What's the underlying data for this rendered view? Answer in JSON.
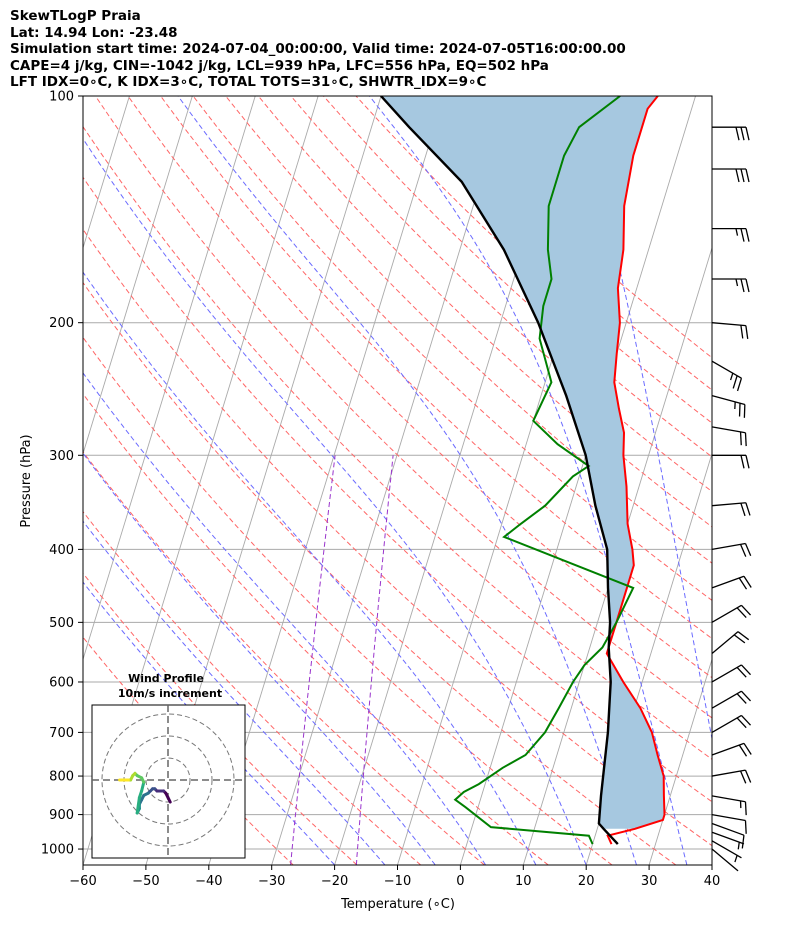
{
  "header": {
    "line1": "SkewTLogP Praia",
    "line2": "Lat: 14.94   Lon: -23.48",
    "line3": "Simulation start time: 2024-07-04_00:00:00, Valid time: 2024-07-05T16:00:00.00",
    "line4": "CAPE=4 j/kg, CIN=-1042 j/kg, LCL=939 hPa, LFC=556 hPa, EQ=502 hPa",
    "line5": "LFT IDX=0∘C, K IDX=3∘C, TOTAL TOTS=31∘C, SHWTR_IDX=9∘C"
  },
  "colors": {
    "temperature": "#ff0000",
    "dewpoint": "#008000",
    "parcel": "#000000",
    "cape_fill": "#a6c8e0",
    "dry_adiabat": "#ff6666",
    "moist_adiabat": "#6b6bff",
    "mixing_ratio": "#9933cc",
    "isotherm": "#aaaaaa"
  },
  "chart_data": [
    {
      "type": "line",
      "subtype": "skew-T log-P diagram",
      "xlabel": "Temperature (∘C)",
      "ylabel": "Pressure (hPa)",
      "xlim": [
        -60,
        40
      ],
      "ylim": [
        1050,
        100
      ],
      "yscale": "log",
      "xticks": [
        -60,
        -50,
        -40,
        -30,
        -20,
        -10,
        0,
        10,
        20,
        30,
        40
      ],
      "yticks": [
        1000,
        900,
        800,
        700,
        600,
        500,
        400,
        300,
        200,
        100
      ],
      "grid": true,
      "series": [
        {
          "key": "temperature",
          "points": [
            [
              23,
              985
            ],
            [
              22,
              960
            ],
            [
              26,
              940
            ],
            [
              30,
              915
            ],
            [
              30,
              900
            ],
            [
              29,
              850
            ],
            [
              28,
              800
            ],
            [
              26,
              750
            ],
            [
              24,
              700
            ],
            [
              21,
              650
            ],
            [
              17,
              600
            ],
            [
              13,
              550
            ],
            [
              13,
              500
            ],
            [
              13,
              450
            ],
            [
              13,
              420
            ],
            [
              12,
              400
            ],
            [
              10,
              370
            ],
            [
              8,
              330
            ],
            [
              6,
              300
            ],
            [
              5,
              280
            ],
            [
              3,
              260
            ],
            [
              1,
              240
            ],
            [
              0,
              220
            ],
            [
              -1,
              200
            ],
            [
              -3,
              180
            ],
            [
              -4,
              160
            ],
            [
              -6,
              140
            ],
            [
              -7,
              120
            ],
            [
              -7,
              110
            ],
            [
              -7,
              104
            ],
            [
              -6,
              100
            ]
          ]
        },
        {
          "key": "dewpoint",
          "points": [
            [
              20,
              985
            ],
            [
              19,
              960
            ],
            [
              3,
              935
            ],
            [
              -2,
              880
            ],
            [
              -4,
              860
            ],
            [
              -3,
              840
            ],
            [
              -1,
              820
            ],
            [
              2,
              780
            ],
            [
              5,
              750
            ],
            [
              7,
              700
            ],
            [
              8,
              650
            ],
            [
              9,
              600
            ],
            [
              10,
              570
            ],
            [
              12,
              540
            ],
            [
              13,
              500
            ],
            [
              14,
              450
            ],
            [
              -9,
              385
            ],
            [
              -7,
              370
            ],
            [
              -4,
              350
            ],
            [
              -1,
              320
            ],
            [
              1,
              310
            ],
            [
              -5,
              290
            ],
            [
              -10,
              270
            ],
            [
              -9,
              240
            ],
            [
              -13,
              210
            ],
            [
              -14,
              190
            ],
            [
              -14,
              175
            ],
            [
              -16,
              160
            ],
            [
              -18,
              140
            ],
            [
              -18,
              120
            ],
            [
              -17,
              110
            ],
            [
              -12,
              100
            ]
          ]
        },
        {
          "key": "parcel",
          "points": [
            [
              24,
              985
            ],
            [
              21,
              940
            ],
            [
              20,
              925
            ],
            [
              19,
              850
            ],
            [
              17,
              700
            ],
            [
              15,
              600
            ],
            [
              13,
              540
            ],
            [
              12,
              500
            ],
            [
              10,
              450
            ],
            [
              8,
              400
            ],
            [
              4,
              350
            ],
            [
              0,
              300
            ],
            [
              -6,
              250
            ],
            [
              -14,
              200
            ],
            [
              -23,
              160
            ],
            [
              -33,
              130
            ],
            [
              -44,
              110
            ],
            [
              -50,
              100
            ]
          ]
        }
      ],
      "wind_barbs": {
        "pressures": [
          1000,
          975,
          950,
          925,
          900,
          850,
          800,
          750,
          700,
          650,
          600,
          550,
          500,
          450,
          400,
          350,
          300,
          275,
          250,
          225,
          200,
          175,
          150,
          125,
          110
        ],
        "direction_deg": [
          130,
          120,
          110,
          110,
          100,
          100,
          80,
          70,
          60,
          60,
          60,
          50,
          60,
          70,
          80,
          85,
          90,
          100,
          105,
          120,
          95,
          90,
          90,
          90,
          90
        ],
        "speed_kt": [
          0,
          5,
          5,
          10,
          10,
          15,
          20,
          20,
          20,
          20,
          20,
          20,
          20,
          20,
          20,
          20,
          20,
          20,
          25,
          25,
          20,
          25,
          25,
          30,
          30
        ]
      }
    },
    {
      "type": "line",
      "subtype": "hodograph",
      "title": "Wind Profile",
      "subtitle": "10m/s increment",
      "xlim": [
        -25,
        25
      ],
      "ylim": [
        -25,
        25
      ],
      "rings": [
        10,
        20
      ],
      "trace_colormap": "viridis",
      "points": [
        [
          1,
          -10
        ],
        [
          0,
          -8
        ],
        [
          -1,
          -6
        ],
        [
          -2,
          -5
        ],
        [
          -3,
          -5
        ],
        [
          -5,
          -5
        ],
        [
          -6,
          -4
        ],
        [
          -7,
          -4
        ],
        [
          -8,
          -5
        ],
        [
          -9,
          -6
        ],
        [
          -11,
          -7
        ],
        [
          -12,
          -9
        ],
        [
          -13,
          -11
        ],
        [
          -13,
          -13
        ],
        [
          -14,
          -15
        ],
        [
          -13,
          -8
        ],
        [
          -12,
          -5
        ],
        [
          -11,
          -1
        ],
        [
          -12,
          1
        ],
        [
          -14,
          2
        ],
        [
          -15,
          3
        ],
        [
          -16,
          2
        ],
        [
          -17,
          0
        ],
        [
          -18,
          0
        ],
        [
          -20,
          0
        ],
        [
          -22,
          0
        ]
      ]
    }
  ]
}
